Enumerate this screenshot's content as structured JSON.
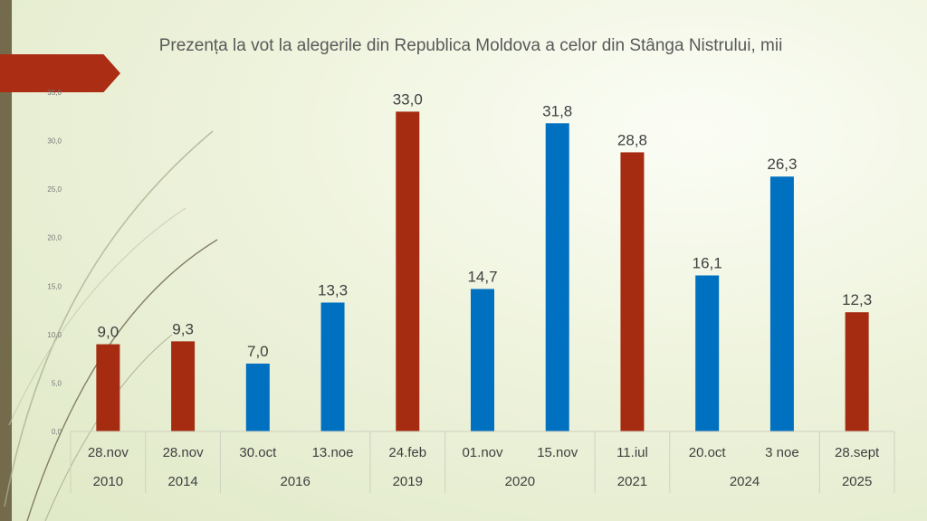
{
  "chart_data": {
    "type": "bar",
    "title": "Prezența la vot la alegerile din Republica Moldova a celor din Stânga Nistrului, mii",
    "categories": [
      "28.nov",
      "28.nov",
      "30.oct",
      "13.noe",
      "24.feb",
      "01.nov",
      "15.nov",
      "11.iul",
      "20.oct",
      "3 noe",
      "28.sept"
    ],
    "values": [
      9.0,
      9.3,
      7.0,
      13.3,
      33.0,
      14.7,
      31.8,
      28.8,
      16.1,
      26.3,
      12.3
    ],
    "value_labels": [
      "9,0",
      "9,3",
      "7,0",
      "13,3",
      "33,0",
      "14,7",
      "31,8",
      "28,8",
      "16,1",
      "26,3",
      "12,3"
    ],
    "colors": [
      "#a52c11",
      "#a52c11",
      "#0070c0",
      "#0070c0",
      "#a52c11",
      "#0070c0",
      "#0070c0",
      "#a52c11",
      "#0070c0",
      "#0070c0",
      "#a52c11"
    ],
    "years": [
      {
        "label": "2010",
        "span": 1
      },
      {
        "label": "2014",
        "span": 1
      },
      {
        "label": "2016",
        "span": 2
      },
      {
        "label": "2019",
        "span": 1
      },
      {
        "label": "2020",
        "span": 2
      },
      {
        "label": "2021",
        "span": 1
      },
      {
        "label": "2024",
        "span": 2
      },
      {
        "label": "2025",
        "span": 1
      }
    ],
    "yticks": [
      0,
      5,
      10,
      15,
      20,
      25,
      30,
      35
    ],
    "ytick_labels": [
      "0,0",
      "5,0",
      "10,0",
      "15,0",
      "20,0",
      "25,0",
      "30,0",
      "35,0"
    ],
    "ylim": [
      0,
      35
    ],
    "xlabel": "",
    "ylabel": ""
  }
}
